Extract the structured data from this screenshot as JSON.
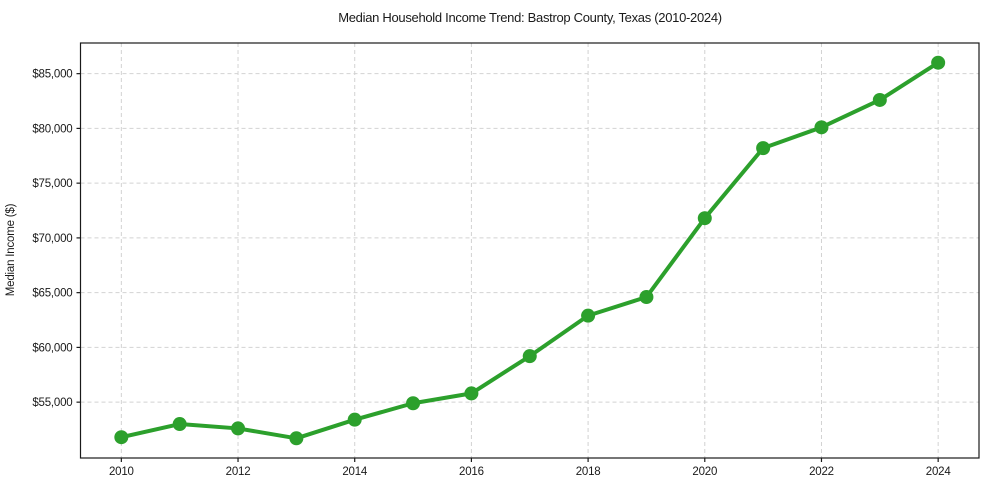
{
  "figure": {
    "background": "#ffffff"
  },
  "chart_data": {
    "type": "line",
    "title": "Median Household Income Trend: Bastrop County, Texas (2010-2024)",
    "xlabel": "",
    "ylabel": "Median Income ($)",
    "x": [
      2010,
      2011,
      2012,
      2013,
      2014,
      2015,
      2016,
      2017,
      2018,
      2019,
      2020,
      2021,
      2022,
      2023,
      2024
    ],
    "series": [
      {
        "name": "Median Household Income",
        "values": [
          51800,
          53000,
          52600,
          51700,
          53400,
          54900,
          55800,
          59200,
          62900,
          64600,
          71800,
          78200,
          80100,
          82600,
          86000
        ],
        "color": "#2ca02c"
      }
    ],
    "xlim": [
      2009.3,
      2024.7
    ],
    "ylim": [
      49900,
      87800
    ],
    "x_ticks": [
      2010,
      2012,
      2014,
      2016,
      2018,
      2020,
      2022,
      2024
    ],
    "x_tick_labels": [
      "2010",
      "2012",
      "2014",
      "2016",
      "2018",
      "2020",
      "2022",
      "2024"
    ],
    "y_ticks": [
      55000,
      60000,
      65000,
      70000,
      75000,
      80000,
      85000
    ],
    "y_tick_labels": [
      "$55,000",
      "$60,000",
      "$65,000",
      "$70,000",
      "$75,000",
      "$80,000",
      "$85,000"
    ],
    "grid": true,
    "grid_color": "#d2d2d2",
    "grid_dash": "4 3",
    "spine_color": "#1a1a1a",
    "text_color": "#1a1a1a",
    "line_width": 4,
    "marker_radius": 7,
    "legend_position": "none"
  }
}
